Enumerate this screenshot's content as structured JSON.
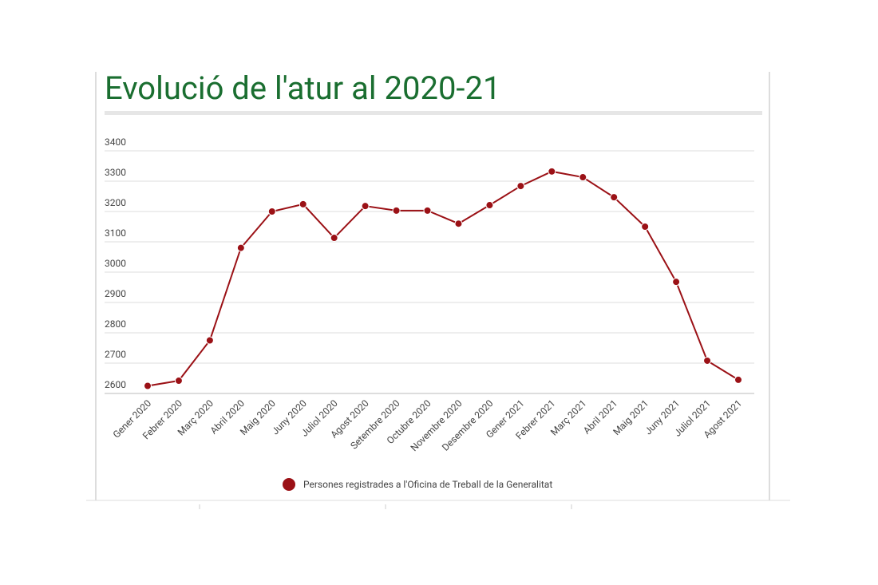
{
  "chart_data": {
    "type": "line",
    "title": "Evolució de l'atur al 2020-21",
    "categories": [
      "Gener 2020",
      "Febrer 2020",
      "Març 2020",
      "Abril 2020",
      "Maig 2020",
      "Juny 2020",
      "Juliol 2020",
      "Agost 2020",
      "Setembre 2020",
      "Octubre 2020",
      "Novembre 2020",
      "Desembre 2020",
      "Gener 2021",
      "Febrer 2021",
      "Març 2021",
      "Abril 2021",
      "Maig 2021",
      "Juny 2021",
      "Juliol 2021",
      "Agost 2021"
    ],
    "series": [
      {
        "name": "Persones registrades a l'Oficina de Treball de la Generalitat",
        "color": "#9b1116",
        "values": [
          2625,
          2642,
          2775,
          3080,
          3200,
          3224,
          3113,
          3218,
          3203,
          3203,
          3160,
          3221,
          3284,
          3332,
          3313,
          3247,
          3150,
          2968,
          2708,
          2645
        ]
      }
    ],
    "ylim": [
      2600,
      3400
    ],
    "yticks": [
      2600,
      2700,
      2800,
      2900,
      3000,
      3100,
      3200,
      3300,
      3400
    ],
    "grid": true,
    "legend": "bottom"
  }
}
